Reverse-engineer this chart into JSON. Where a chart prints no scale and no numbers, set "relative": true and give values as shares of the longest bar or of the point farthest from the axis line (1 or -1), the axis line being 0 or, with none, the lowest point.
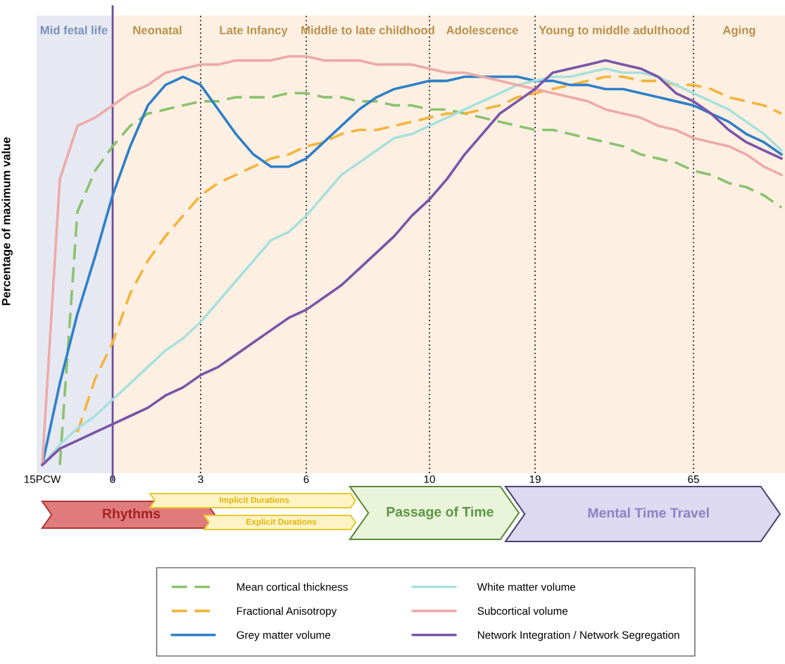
{
  "chart_data": {
    "type": "line",
    "relative": true,
    "ylabel": "Percentage of maximum value",
    "categories": [
      "15PCW",
      null,
      null,
      null,
      "0",
      null,
      null,
      null,
      null,
      "3",
      null,
      null,
      null,
      null,
      null,
      "6",
      null,
      null,
      null,
      null,
      null,
      null,
      "10",
      null,
      null,
      null,
      null,
      null,
      "19",
      null,
      null,
      null,
      null,
      null,
      null,
      null,
      null,
      "65",
      null,
      null,
      null,
      null,
      null
    ],
    "bands": [
      {
        "axis": "x",
        "from": "15PCW",
        "to": "0",
        "label": "Mid fetal life",
        "color": "#e6e9f2"
      }
    ],
    "ref_lines": [
      {
        "axis": "x",
        "value": "0",
        "color": "#6a4c9c",
        "line_style": "solid"
      },
      {
        "axis": "x",
        "value": "3",
        "color": "#333333",
        "line_style": "dotted"
      },
      {
        "axis": "x",
        "value": "6",
        "color": "#333333",
        "line_style": "dotted"
      },
      {
        "axis": "x",
        "value": "10",
        "color": "#333333",
        "line_style": "dotted"
      },
      {
        "axis": "x",
        "value": "19",
        "color": "#333333",
        "line_style": "dotted"
      },
      {
        "axis": "x",
        "value": "65",
        "color": "#333333",
        "line_style": "dotted"
      }
    ],
    "series": [
      {
        "name": "Mean cortical thickness",
        "color": "#8cc270",
        "line_style": "dashed",
        "values": [
          null,
          0,
          0.62,
          0.72,
          0.78,
          0.83,
          0.86,
          0.87,
          0.88,
          0.89,
          0.89,
          0.9,
          0.9,
          0.9,
          0.91,
          0.91,
          0.9,
          0.9,
          0.89,
          0.89,
          0.88,
          0.88,
          0.87,
          0.87,
          0.86,
          0.85,
          0.84,
          0.83,
          0.82,
          0.82,
          0.81,
          0.8,
          0.79,
          0.78,
          0.76,
          0.75,
          0.74,
          0.72,
          0.71,
          0.69,
          0.68,
          0.66,
          0.63
        ]
      },
      {
        "name": "Fractional Anisotropy",
        "color": "#f4b43c",
        "line_style": "dashed",
        "values": [
          null,
          null,
          0.08,
          0.21,
          0.3,
          0.42,
          0.5,
          0.56,
          0.61,
          0.66,
          0.69,
          0.71,
          0.73,
          0.75,
          0.76,
          0.78,
          0.79,
          0.81,
          0.82,
          0.82,
          0.83,
          0.84,
          0.85,
          0.86,
          0.86,
          0.87,
          0.88,
          0.9,
          0.91,
          0.92,
          0.93,
          0.94,
          0.95,
          0.95,
          0.94,
          0.94,
          0.93,
          0.93,
          0.92,
          0.9,
          0.89,
          0.88,
          0.86
        ]
      },
      {
        "name": "Grey matter volume",
        "color": "#2f80c8",
        "line_style": "solid",
        "values": [
          0,
          0.2,
          0.37,
          0.51,
          0.66,
          0.78,
          0.88,
          0.93,
          0.95,
          0.93,
          0.87,
          0.81,
          0.76,
          0.73,
          0.73,
          0.75,
          0.79,
          0.83,
          0.87,
          0.9,
          0.92,
          0.93,
          0.94,
          0.94,
          0.95,
          0.95,
          0.95,
          0.95,
          0.94,
          0.94,
          0.93,
          0.93,
          0.92,
          0.92,
          0.91,
          0.9,
          0.89,
          0.88,
          0.86,
          0.84,
          0.81,
          0.79,
          0.76
        ]
      },
      {
        "name": "White matter volume",
        "color": "#a8e0dc",
        "line_style": "solid",
        "values": [
          0,
          0.05,
          0.09,
          0.12,
          0.16,
          0.2,
          0.24,
          0.28,
          0.31,
          0.35,
          0.4,
          0.45,
          0.5,
          0.55,
          0.57,
          0.61,
          0.66,
          0.71,
          0.74,
          0.77,
          0.8,
          0.81,
          0.83,
          0.85,
          0.87,
          0.89,
          0.91,
          0.93,
          0.94,
          0.95,
          0.95,
          0.96,
          0.97,
          0.96,
          0.96,
          0.95,
          0.93,
          0.91,
          0.89,
          0.87,
          0.84,
          0.81,
          0.77
        ]
      },
      {
        "name": "Subcortical volume",
        "color": "#eeaaaa",
        "line_style": "solid",
        "values": [
          0,
          0.7,
          0.83,
          0.85,
          0.88,
          0.91,
          0.93,
          0.96,
          0.97,
          0.98,
          0.98,
          0.99,
          0.99,
          0.99,
          1.0,
          1.0,
          0.99,
          0.99,
          0.99,
          0.98,
          0.98,
          0.98,
          0.97,
          0.96,
          0.96,
          0.95,
          0.94,
          0.93,
          0.92,
          0.91,
          0.9,
          0.89,
          0.87,
          0.86,
          0.85,
          0.83,
          0.82,
          0.8,
          0.79,
          0.78,
          0.76,
          0.73,
          0.71
        ]
      },
      {
        "name": "Network Integration / Network Segregation",
        "color": "#7b55a8",
        "line_style": "solid",
        "values": [
          0,
          0.04,
          0.06,
          0.08,
          0.1,
          0.12,
          0.14,
          0.17,
          0.19,
          0.22,
          0.24,
          0.27,
          0.3,
          0.33,
          0.36,
          0.38,
          0.41,
          0.44,
          0.48,
          0.52,
          0.56,
          0.61,
          0.65,
          0.7,
          0.76,
          0.81,
          0.86,
          0.89,
          0.92,
          0.96,
          0.97,
          0.98,
          0.99,
          0.98,
          0.97,
          0.95,
          0.91,
          0.89,
          0.86,
          0.82,
          0.79,
          0.77,
          0.75
        ]
      }
    ],
    "legend": "bottom",
    "annotations": [
      "Neonatal",
      "Late Infancy",
      "Middle to late childhood",
      "Adolescence",
      "Young to middle adulthood",
      "Aging",
      "Rhythms",
      "Implicit Durations",
      "Explicit Durations",
      "Passage of Time",
      "Mental Time Travel"
    ]
  }
}
